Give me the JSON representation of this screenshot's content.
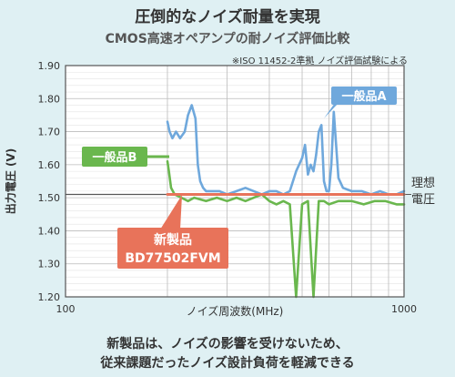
{
  "header": {
    "title": "圧倒的なノイズ耐量を実現",
    "subtitle": "CMOS高速オペアンプの耐ノイズ評価比較",
    "note": "※ISO 11452-2準拠 ノイズ評価試験による"
  },
  "caption": {
    "line1": "新製品は、ノイズの影響を受けないため、",
    "line2": "従来課題だったノイズ設計負荷を軽減できる"
  },
  "colors": {
    "background": "#dff0f3",
    "plot_bg": "#ffffff",
    "series_a": "#6fa8dc",
    "series_b": "#6ab74e",
    "new_product": "#e8735a",
    "ideal": "#555555"
  },
  "chart_data": {
    "type": "line",
    "xscale": "log",
    "xlim": [
      100,
      1000
    ],
    "ylim": [
      1.2,
      1.9
    ],
    "xlabel": "ノイズ周波数(MHz)",
    "ylabel": "出力電圧 (V)",
    "x_ticks": [
      "100",
      "1000"
    ],
    "y_ticks": [
      "1.20",
      "1.30",
      "1.40",
      "1.50",
      "1.60",
      "1.70",
      "1.80",
      "1.90"
    ],
    "grid": true,
    "ideal_value": 1.51,
    "ideal_label_line1": "理想",
    "ideal_label_line2": "電圧",
    "series": [
      {
        "name": "一般品A",
        "color": "#6fa8dc",
        "x": [
          200,
          203,
          207,
          212,
          218,
          225,
          230,
          236,
          242,
          246,
          250,
          255,
          260,
          270,
          285,
          300,
          320,
          340,
          360,
          380,
          400,
          420,
          440,
          460,
          480,
          500,
          510,
          520,
          530,
          540,
          550,
          560,
          570,
          580,
          590,
          600,
          610,
          620,
          640,
          660,
          700,
          750,
          800,
          850,
          900,
          950,
          1000
        ],
        "y": [
          1.73,
          1.7,
          1.68,
          1.7,
          1.68,
          1.7,
          1.75,
          1.78,
          1.74,
          1.6,
          1.55,
          1.53,
          1.52,
          1.52,
          1.52,
          1.51,
          1.52,
          1.53,
          1.52,
          1.51,
          1.52,
          1.52,
          1.51,
          1.52,
          1.58,
          1.62,
          1.66,
          1.57,
          1.6,
          1.58,
          1.63,
          1.7,
          1.72,
          1.55,
          1.52,
          1.52,
          1.6,
          1.76,
          1.56,
          1.53,
          1.52,
          1.52,
          1.51,
          1.52,
          1.51,
          1.51,
          1.52
        ]
      },
      {
        "name": "一般品B",
        "color": "#6ab74e",
        "x": [
          200,
          202,
          205,
          210,
          220,
          230,
          240,
          260,
          280,
          300,
          320,
          340,
          360,
          380,
          400,
          420,
          440,
          460,
          480,
          500,
          520,
          540,
          560,
          580,
          600,
          640,
          700,
          760,
          820,
          880,
          950,
          1000
        ],
        "y": [
          1.61,
          1.58,
          1.53,
          1.51,
          1.5,
          1.49,
          1.5,
          1.49,
          1.5,
          1.49,
          1.5,
          1.49,
          1.5,
          1.51,
          1.49,
          1.48,
          1.49,
          1.48,
          1.2,
          1.48,
          1.49,
          1.2,
          1.49,
          1.49,
          1.48,
          1.49,
          1.49,
          1.48,
          1.49,
          1.49,
          1.48,
          1.48
        ]
      },
      {
        "name": "新製品",
        "label_line1": "新製品",
        "label_line2": "BD77502FVM",
        "color": "#e8735a",
        "x": [
          200,
          240,
          280,
          320,
          360,
          400,
          440,
          480,
          520,
          560,
          600,
          650,
          700,
          800,
          900,
          1000
        ],
        "y": [
          1.51,
          1.51,
          1.51,
          1.51,
          1.51,
          1.51,
          1.51,
          1.51,
          1.51,
          1.51,
          1.51,
          1.51,
          1.51,
          1.51,
          1.51,
          1.51
        ]
      }
    ]
  }
}
